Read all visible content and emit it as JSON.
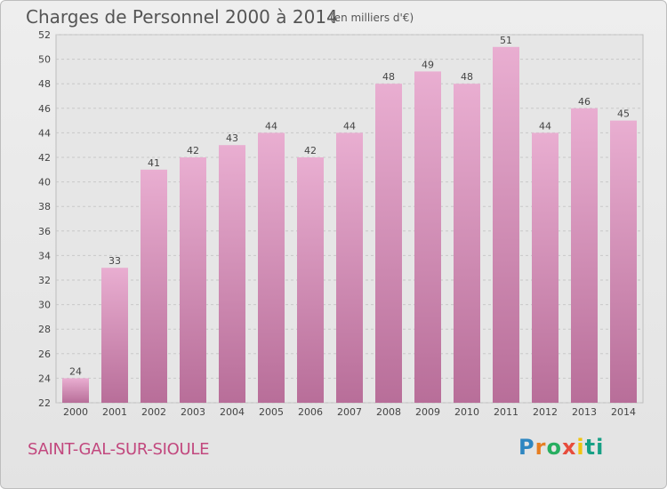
{
  "header": {
    "title": "Charges de Personnel 2000 à 2014",
    "subtitle": "(en milliers d'€)"
  },
  "footer": {
    "town": "SAINT-GAL-SUR-SIOULE",
    "logo": "Proxiti"
  },
  "colors": {
    "bar_top": "#e9aed1",
    "bar_bottom": "#b86e99",
    "town_text": "#c2487e"
  },
  "chart_data": {
    "type": "bar",
    "title": "Charges de Personnel 2000 à 2014",
    "subtitle": "(en milliers d'€)",
    "categories": [
      "2000",
      "2001",
      "2002",
      "2003",
      "2004",
      "2005",
      "2006",
      "2007",
      "2008",
      "2009",
      "2010",
      "2011",
      "2012",
      "2013",
      "2014"
    ],
    "values": [
      24,
      33,
      41,
      42,
      43,
      44,
      42,
      44,
      48,
      49,
      48,
      51,
      44,
      46,
      45
    ],
    "ylim": [
      22,
      52
    ],
    "yticks": [
      22,
      24,
      26,
      28,
      30,
      32,
      34,
      36,
      38,
      40,
      42,
      44,
      46,
      48,
      50,
      52
    ],
    "grid": true,
    "legend": "none"
  }
}
